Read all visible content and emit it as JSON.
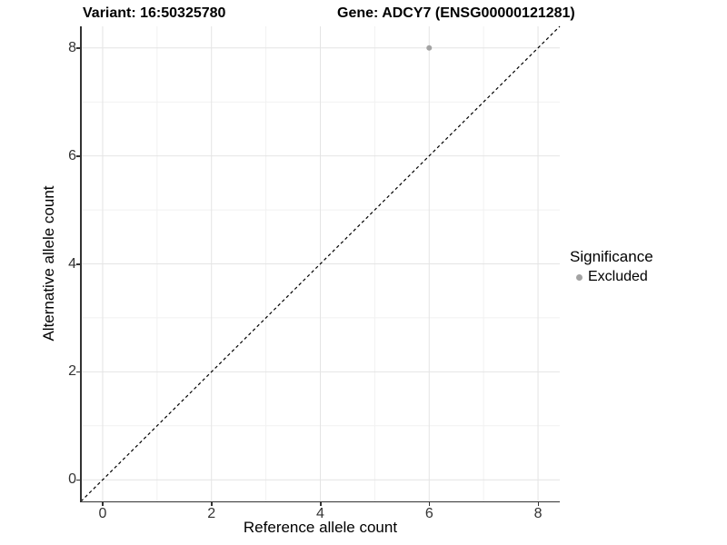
{
  "chart_data": {
    "type": "scatter",
    "titles": {
      "left": "Variant: 16:50325780",
      "right": "Gene: ADCY7 (ENSG00000121281)"
    },
    "xlabel": "Reference allele count",
    "ylabel": "Alternative allele count",
    "xlim": [
      -0.4,
      8.4
    ],
    "ylim": [
      -0.4,
      8.4
    ],
    "xticks": [
      0,
      2,
      4,
      6,
      8
    ],
    "yticks": [
      0,
      2,
      4,
      6,
      8
    ],
    "x_minor": [
      1,
      3,
      5,
      7
    ],
    "y_minor": [
      1,
      3,
      5,
      7
    ],
    "grid": "major and minor gridlines on white background",
    "series": [
      {
        "name": "Excluded",
        "color": "#a3a3a3",
        "points": [
          {
            "x": 6,
            "y": 8
          }
        ]
      }
    ],
    "reference_line": {
      "type": "identity y=x",
      "style": "dashed",
      "color": "#000000"
    },
    "legend": {
      "title": "Significance",
      "position": "right",
      "entries": [
        {
          "label": "Excluded",
          "color": "#a3a3a3"
        }
      ]
    },
    "colors": {
      "background": "#ffffff",
      "grid_major": "#e4e4e4",
      "grid_minor": "#f1f1f1",
      "axis_line": "#333333",
      "tick_label": "#333333"
    }
  }
}
